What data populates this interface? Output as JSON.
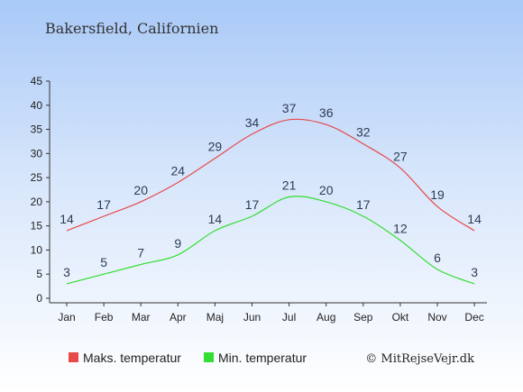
{
  "chart_data": {
    "type": "line",
    "title": "Bakersfield, Californien",
    "categories": [
      "Jan",
      "Feb",
      "Mar",
      "Apr",
      "Maj",
      "Jun",
      "Jul",
      "Aug",
      "Sep",
      "Okt",
      "Nov",
      "Dec"
    ],
    "ylim": [
      0,
      45
    ],
    "yticks": [
      "0",
      "5",
      "10",
      "15",
      "20",
      "25",
      "30",
      "35",
      "40",
      "45"
    ],
    "grid": false,
    "legend_position": "bottom",
    "series": [
      {
        "name": "Maks. temperatur",
        "color": "#e8494a",
        "values": [
          14,
          17,
          20,
          24,
          29,
          34,
          37,
          36,
          32,
          27,
          19,
          14
        ]
      },
      {
        "name": "Min. temperatur",
        "color": "#33dd33",
        "values": [
          3,
          5,
          7,
          9,
          14,
          17,
          21,
          20,
          17,
          12,
          6,
          3
        ]
      }
    ]
  },
  "credit": "© MitRejseVejr.dk"
}
